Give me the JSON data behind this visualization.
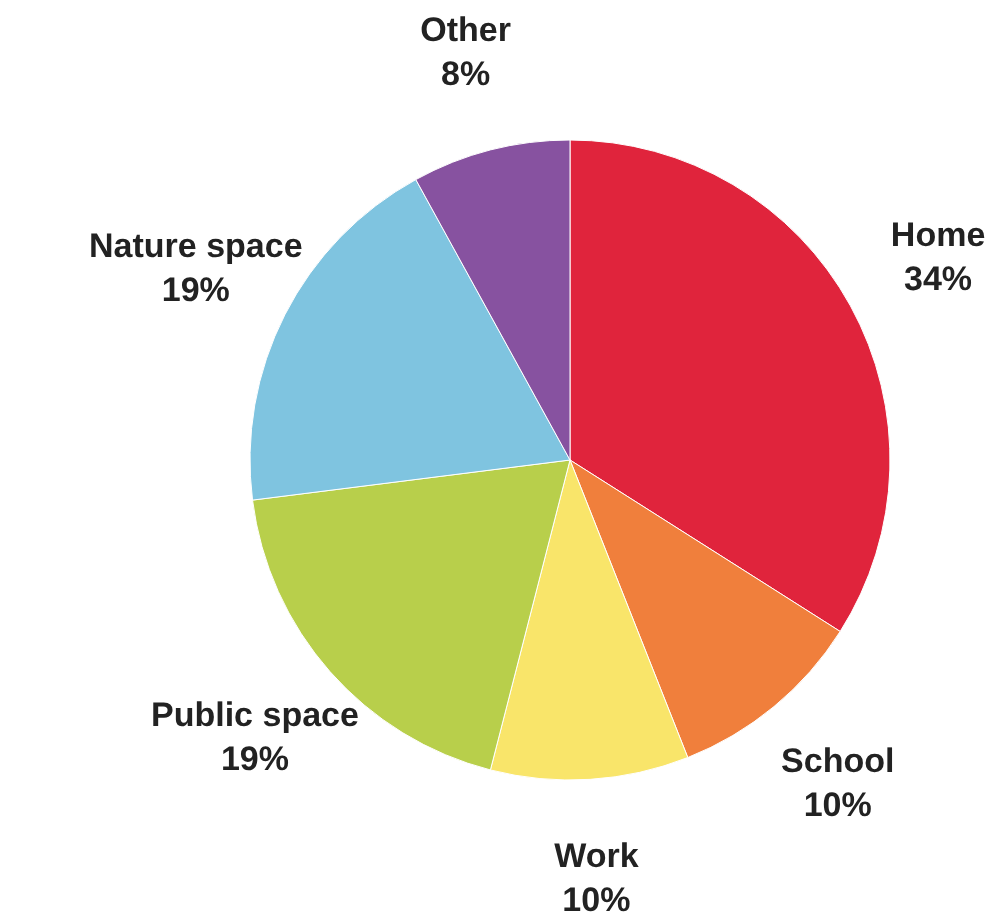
{
  "chart_data": {
    "type": "pie",
    "categories": [
      "Home",
      "School",
      "Work",
      "Public space",
      "Nature space",
      "Other"
    ],
    "values": [
      34,
      10,
      10,
      19,
      19,
      8
    ],
    "value_labels": [
      "34%",
      "10%",
      "10%",
      "19%",
      "19%",
      "8%"
    ],
    "colors": [
      "#e0243c",
      "#f07f3c",
      "#f9e56a",
      "#b8cf4b",
      "#7fc4e0",
      "#8752a0"
    ]
  }
}
